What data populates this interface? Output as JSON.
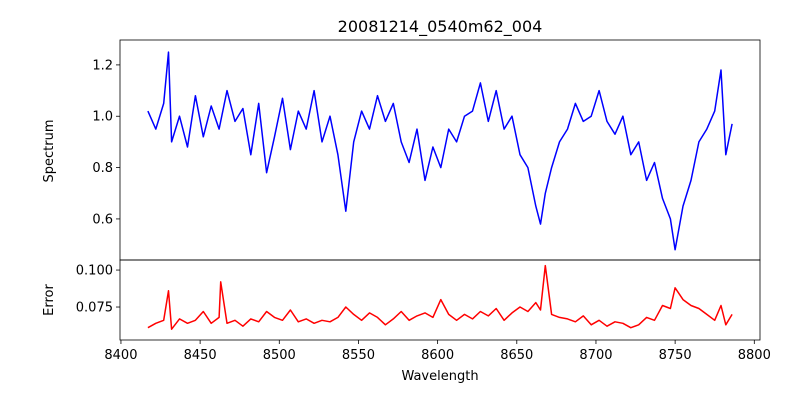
{
  "chart_data": {
    "type": "line",
    "title": "20081214_0540m62_004",
    "xlabel": "Wavelength",
    "xlim": [
      8399.4,
      8803.6
    ],
    "xticks": [
      8400,
      8450,
      8500,
      8550,
      8600,
      8650,
      8700,
      8750,
      8800
    ],
    "panels": [
      {
        "name": "spectrum",
        "ylabel": "Spectrum",
        "ylim": [
          0.44,
          1.297
        ],
        "yticks": [
          "0.6",
          "0.8",
          "1.0",
          "1.2"
        ],
        "ytick_values": [
          0.6,
          0.8,
          1.0,
          1.2
        ],
        "color": "#0000ff",
        "x": [
          8417,
          8422,
          8427,
          8430,
          8432,
          8437,
          8442,
          8447,
          8452,
          8457,
          8462,
          8467,
          8472,
          8477,
          8482,
          8487,
          8492,
          8497,
          8502,
          8507,
          8512,
          8517,
          8522,
          8527,
          8532,
          8537,
          8542,
          8547,
          8552,
          8557,
          8562,
          8567,
          8572,
          8577,
          8582,
          8587,
          8592,
          8597,
          8602,
          8607,
          8612,
          8617,
          8622,
          8627,
          8632,
          8637,
          8642,
          8647,
          8652,
          8657,
          8662,
          8665,
          8668,
          8672,
          8677,
          8682,
          8687,
          8692,
          8697,
          8702,
          8707,
          8712,
          8717,
          8722,
          8727,
          8732,
          8737,
          8742,
          8747,
          8750,
          8755,
          8760,
          8765,
          8770,
          8775,
          8779,
          8782,
          8786
        ],
        "y": [
          1.02,
          0.95,
          1.05,
          1.25,
          0.9,
          1.0,
          0.88,
          1.08,
          0.92,
          1.04,
          0.95,
          1.1,
          0.98,
          1.03,
          0.85,
          1.05,
          0.78,
          0.92,
          1.07,
          0.87,
          1.02,
          0.95,
          1.1,
          0.9,
          1.0,
          0.85,
          0.63,
          0.9,
          1.02,
          0.95,
          1.08,
          0.98,
          1.05,
          0.9,
          0.82,
          0.95,
          0.75,
          0.88,
          0.8,
          0.95,
          0.9,
          1.0,
          1.02,
          1.13,
          0.98,
          1.1,
          0.95,
          1.0,
          0.85,
          0.8,
          0.65,
          0.58,
          0.7,
          0.8,
          0.9,
          0.95,
          1.05,
          0.98,
          1.0,
          1.1,
          0.98,
          0.93,
          1.0,
          0.85,
          0.9,
          0.75,
          0.82,
          0.68,
          0.6,
          0.48,
          0.65,
          0.75,
          0.9,
          0.95,
          1.02,
          1.18,
          0.85,
          0.97
        ]
      },
      {
        "name": "error",
        "ylabel": "Error",
        "ylim": [
          0.0527,
          0.1068
        ],
        "yticks": [
          "0.075",
          "0.100"
        ],
        "ytick_values": [
          0.075,
          0.1
        ],
        "color": "#ff0000",
        "x": [
          8417,
          8422,
          8427,
          8430,
          8432,
          8437,
          8442,
          8447,
          8452,
          8457,
          8462,
          8463,
          8467,
          8472,
          8477,
          8482,
          8487,
          8492,
          8497,
          8502,
          8507,
          8512,
          8517,
          8522,
          8527,
          8532,
          8537,
          8542,
          8547,
          8552,
          8557,
          8562,
          8567,
          8572,
          8577,
          8582,
          8587,
          8592,
          8597,
          8602,
          8607,
          8612,
          8617,
          8622,
          8627,
          8632,
          8637,
          8642,
          8647,
          8652,
          8657,
          8662,
          8665,
          8668,
          8672,
          8677,
          8682,
          8687,
          8692,
          8697,
          8702,
          8707,
          8712,
          8717,
          8722,
          8727,
          8732,
          8737,
          8742,
          8747,
          8750,
          8755,
          8760,
          8765,
          8770,
          8775,
          8779,
          8782,
          8786
        ],
        "y": [
          0.061,
          0.064,
          0.066,
          0.086,
          0.06,
          0.067,
          0.064,
          0.066,
          0.072,
          0.064,
          0.068,
          0.092,
          0.064,
          0.066,
          0.062,
          0.067,
          0.065,
          0.072,
          0.068,
          0.066,
          0.073,
          0.065,
          0.067,
          0.064,
          0.066,
          0.065,
          0.068,
          0.075,
          0.07,
          0.066,
          0.071,
          0.068,
          0.063,
          0.067,
          0.072,
          0.066,
          0.069,
          0.071,
          0.068,
          0.08,
          0.07,
          0.066,
          0.07,
          0.067,
          0.072,
          0.069,
          0.074,
          0.066,
          0.071,
          0.075,
          0.072,
          0.078,
          0.073,
          0.103,
          0.07,
          0.068,
          0.067,
          0.065,
          0.069,
          0.063,
          0.066,
          0.062,
          0.065,
          0.064,
          0.061,
          0.063,
          0.068,
          0.066,
          0.076,
          0.074,
          0.088,
          0.08,
          0.076,
          0.074,
          0.07,
          0.066,
          0.076,
          0.063,
          0.07
        ]
      }
    ]
  }
}
